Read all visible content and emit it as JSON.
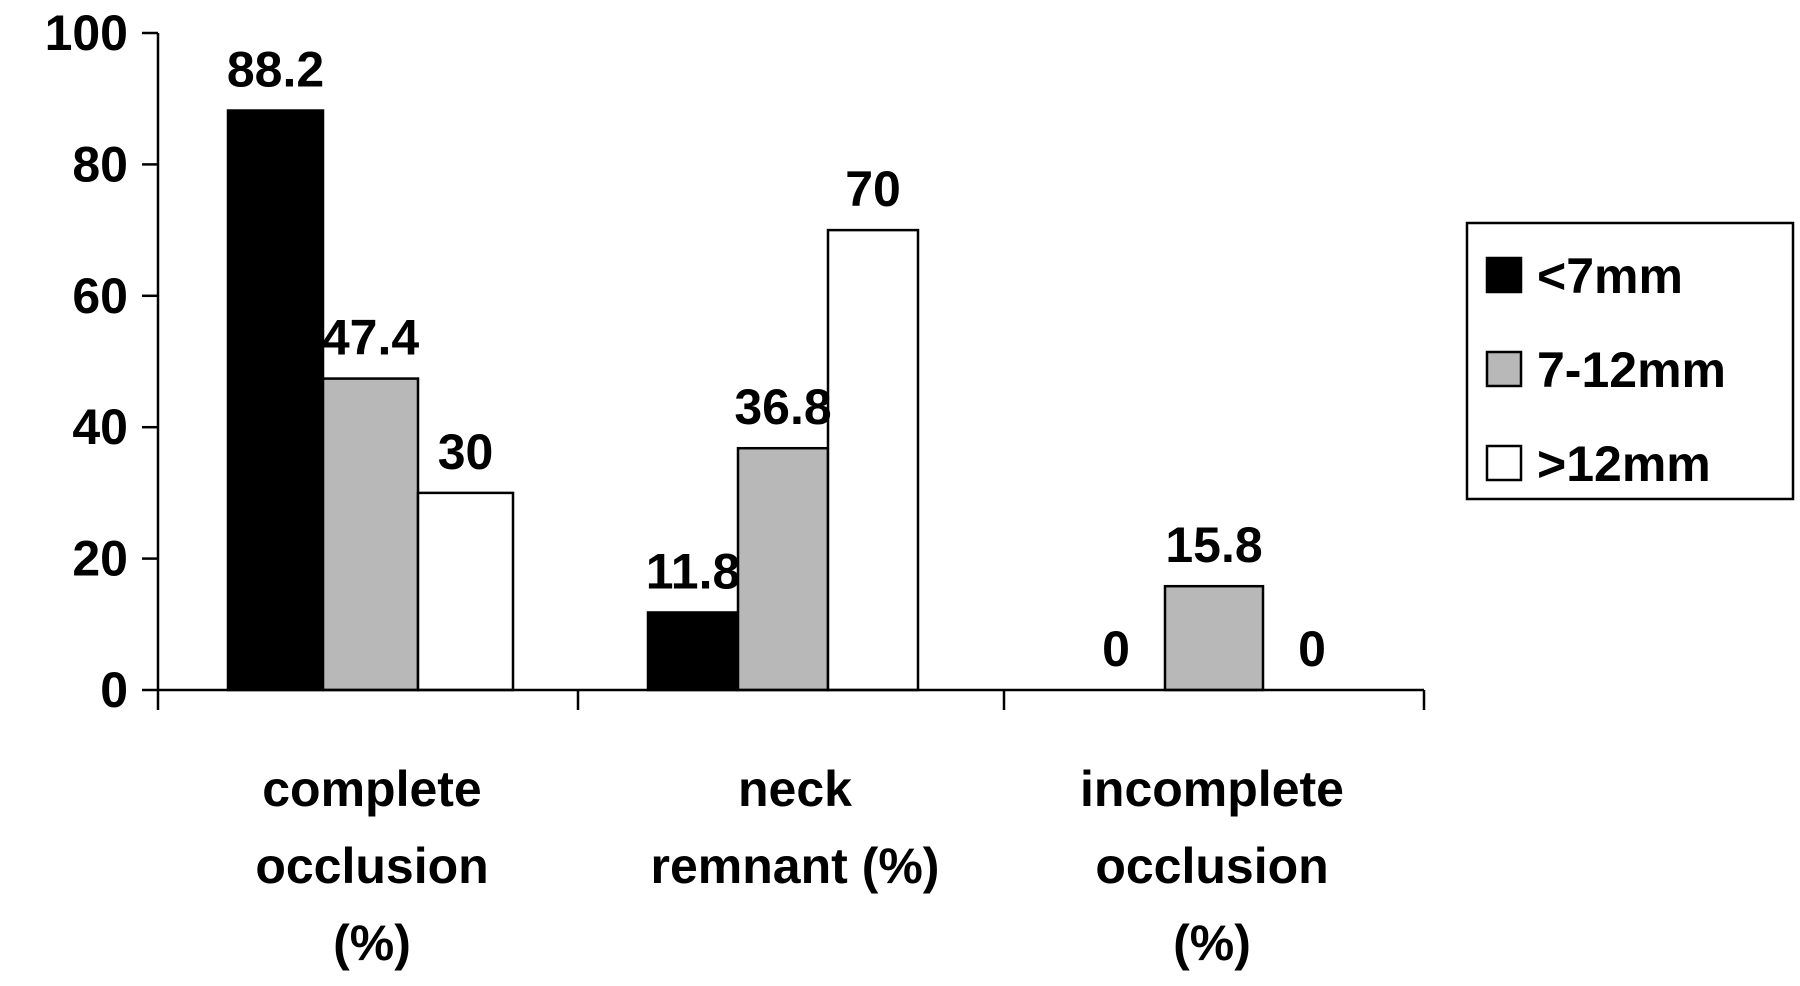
{
  "chart_data": {
    "type": "bar",
    "title": "",
    "xlabel": "",
    "ylabel": "",
    "categories": [
      [
        "complete",
        "occlusion",
        "(%)"
      ],
      [
        "neck",
        "remnant (%)"
      ],
      [
        "incomplete",
        "occlusion",
        "(%)"
      ]
    ],
    "series": [
      {
        "name": "<7mm",
        "color": "#000000",
        "values": [
          88.2,
          11.8,
          0
        ]
      },
      {
        "name": "7-12mm",
        "color": "#b8b8b8",
        "values": [
          47.4,
          36.8,
          15.8
        ]
      },
      {
        "name": ">12mm",
        "color": "#ffffff",
        "values": [
          30,
          70,
          0
        ]
      }
    ],
    "ylim": [
      0,
      100
    ],
    "yticks": [
      "0",
      "20",
      "40",
      "60",
      "80",
      "100"
    ],
    "grid": false,
    "legend_position": "right"
  }
}
